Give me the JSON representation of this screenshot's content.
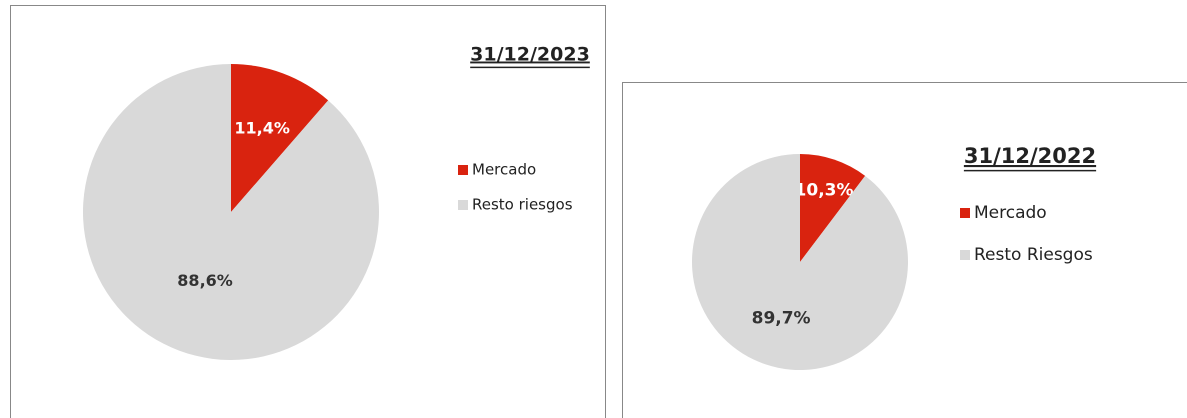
{
  "chart_data": [
    {
      "type": "pie",
      "title": "31/12/2023",
      "categories": [
        "Mercado",
        "Resto riesgos"
      ],
      "values": [
        11.4,
        88.6
      ],
      "value_labels": [
        "11,4%",
        "88,6%"
      ],
      "colors": [
        "#d9230f",
        "#d9d9d9"
      ],
      "legend": "right"
    },
    {
      "type": "pie",
      "title": "31/12/2022",
      "categories": [
        "Mercado",
        "Resto Riesgos"
      ],
      "values": [
        10.3,
        89.7
      ],
      "value_labels": [
        "10,3%",
        "89,7%"
      ],
      "colors": [
        "#d9230f",
        "#d9d9d9"
      ],
      "legend": "right"
    }
  ]
}
